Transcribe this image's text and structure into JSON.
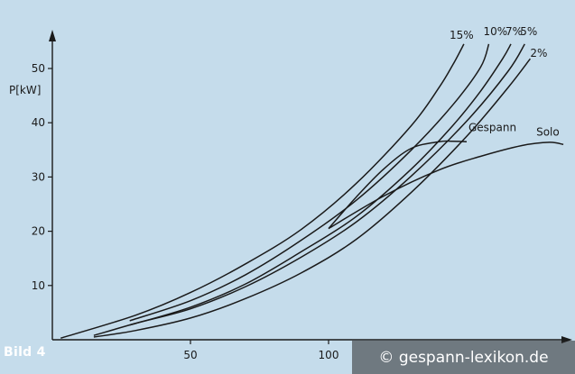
{
  "figure_label": "Bild 4",
  "watermark": "© gespann-lexikon.de",
  "chart_data": {
    "type": "line",
    "ylabel": "P[kW]",
    "xlabel": "",
    "xlim": [
      0,
      185
    ],
    "ylim": [
      0,
      55
    ],
    "x_ticks": [
      50,
      100
    ],
    "y_ticks": [
      10,
      20,
      30,
      40,
      50
    ],
    "grid": false,
    "series": [
      {
        "name": "15%",
        "x": [
          3,
          30,
          50,
          70,
          90,
          110,
          130,
          140,
          145,
          149
        ],
        "y": [
          0.3,
          4.5,
          8.7,
          14,
          20.3,
          28.8,
          39.5,
          46.5,
          50.7,
          54.5
        ]
      },
      {
        "name": "10%",
        "x": [
          28,
          50,
          70,
          90,
          110,
          130,
          145,
          155,
          158
        ],
        "y": [
          3.5,
          7.2,
          12,
          18.3,
          25.7,
          35,
          43.3,
          50.2,
          54.5
        ]
      },
      {
        "name": "7%",
        "x": [
          28,
          50,
          70,
          90,
          110,
          130,
          145,
          155,
          163,
          166
        ],
        "y": [
          2.7,
          6,
          10.3,
          16.2,
          22.7,
          31.5,
          39.5,
          45.8,
          51.8,
          54.5
        ]
      },
      {
        "name": "5%",
        "x": [
          15,
          30,
          50,
          70,
          90,
          110,
          130,
          150,
          165,
          171
        ],
        "y": [
          0.8,
          3,
          5.7,
          9.8,
          15.2,
          21.7,
          30.2,
          40.3,
          49.5,
          54.5
        ]
      },
      {
        "name": "2%",
        "x": [
          15,
          30,
          50,
          70,
          90,
          110,
          130,
          150,
          165,
          173
        ],
        "y": [
          0.5,
          1.7,
          4,
          7.6,
          12.3,
          18.5,
          27.2,
          37.5,
          46.5,
          51.8
        ]
      },
      {
        "name": "Gespann",
        "x": [
          100,
          110,
          120,
          130,
          140,
          145,
          150
        ],
        "y": [
          20.5,
          26.3,
          31.5,
          35.3,
          36.5,
          36.6,
          36.5
        ]
      },
      {
        "name": "Solo",
        "x": [
          100,
          120,
          140,
          155,
          170,
          180,
          185
        ],
        "y": [
          20.5,
          26.5,
          31.3,
          33.8,
          35.8,
          36.4,
          36
        ]
      }
    ],
    "labels": {
      "15%": "15%",
      "10%": "10%",
      "7%": "7%",
      "5%": "5%",
      "2%": "2%",
      "Gespann": "Gespann",
      "Solo": "Solo"
    }
  }
}
